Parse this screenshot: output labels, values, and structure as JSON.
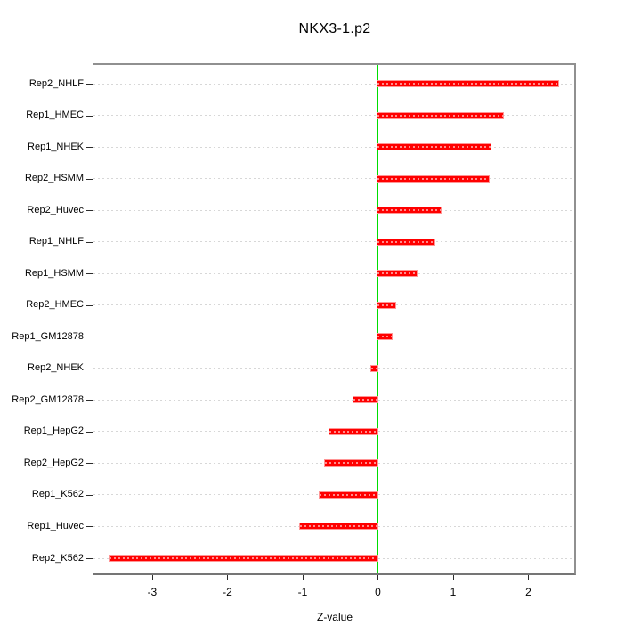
{
  "chart_data": {
    "type": "bar",
    "orientation": "horizontal",
    "title": "NKX3-1.p2",
    "xlabel": "Z-value",
    "ylabel": "",
    "categories": [
      "Rep2_NHLF",
      "Rep1_HMEC",
      "Rep1_NHEK",
      "Rep2_HSMM",
      "Rep2_Huvec",
      "Rep1_NHLF",
      "Rep1_HSMM",
      "Rep2_HMEC",
      "Rep1_GM12878",
      "Rep2_NHEK",
      "Rep2_GM12878",
      "Rep1_HepG2",
      "Rep2_HepG2",
      "Rep1_K562",
      "Rep1_Huvec",
      "Rep2_K562"
    ],
    "values": [
      2.4,
      1.66,
      1.5,
      1.47,
      0.84,
      0.75,
      0.52,
      0.23,
      0.19,
      -0.09,
      -0.33,
      -0.64,
      -0.7,
      -0.78,
      -1.03,
      -3.57
    ],
    "xlim": [
      -3.78,
      2.61
    ],
    "xticks": [
      "-3",
      "-2",
      "-1",
      "0",
      "1",
      "2"
    ],
    "xtick_values": [
      -3,
      -2,
      -1,
      0,
      1,
      2
    ],
    "grid": true,
    "legend": "none",
    "colors": {
      "bar": "#ff0000",
      "bar_edge": "#ff9595",
      "zero_line": "#00dd00",
      "grid": "#d7d7d7",
      "box": "#909090",
      "text": "#000000",
      "background": "#ffffff"
    }
  }
}
